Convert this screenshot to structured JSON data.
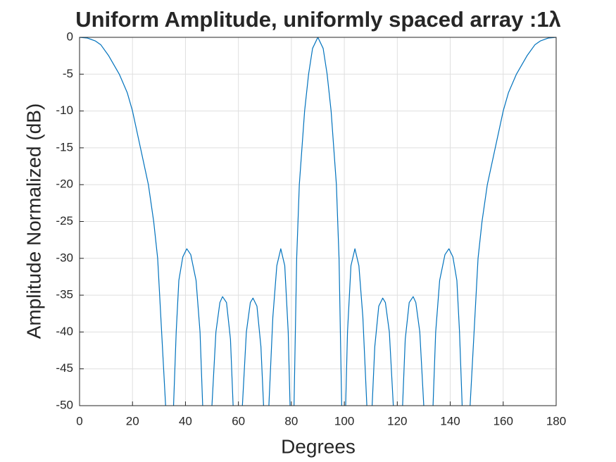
{
  "chart_data": {
    "type": "line",
    "title": "Uniform Amplitude, uniformly spaced array :1λ",
    "xlabel": "Degrees",
    "ylabel": "Amplitude Normalized (dB)",
    "color": "#0072bd",
    "grid": true,
    "xlim": [
      0,
      180
    ],
    "xticks": [
      0,
      20,
      40,
      60,
      80,
      100,
      120,
      140,
      160,
      180
    ],
    "ylim": [
      -50,
      0
    ],
    "yticks": [
      -50,
      -45,
      -40,
      -35,
      -30,
      -25,
      -20,
      -15,
      -10,
      -5,
      0
    ],
    "x": [
      0,
      3,
      6,
      8,
      11,
      15,
      18,
      20,
      23,
      26,
      28,
      29.5,
      31,
      32.5,
      33.6,
      35.5,
      36.5,
      37.5,
      39,
      40.5,
      42,
      44,
      45.5,
      46.5,
      48.2,
      50,
      51.5,
      53,
      54,
      55.5,
      57,
      58,
      60,
      61.5,
      63,
      64.5,
      65.5,
      67,
      68.5,
      69.5,
      70.5,
      71.5,
      73,
      74.5,
      76,
      77.5,
      78.8,
      79.5,
      80.4,
      81,
      82,
      83,
      85,
      86.5,
      88,
      90,
      92,
      93.5,
      95,
      97,
      98,
      99,
      99.6,
      100.5,
      101.2,
      102.5,
      104,
      105.5,
      107,
      108.5,
      109.5,
      110.5,
      111.5,
      113,
      114.5,
      115.5,
      117,
      118.5,
      120,
      122,
      123,
      124.5,
      126,
      127,
      128.5,
      130,
      131.8,
      133.5,
      134.5,
      136,
      138,
      139.5,
      141,
      142.5,
      143.5,
      144.5,
      146.4,
      147.5,
      149,
      150.5,
      152,
      154,
      157,
      160,
      162,
      165,
      169,
      172,
      174,
      177,
      180
    ],
    "values": [
      0,
      -0.1,
      -0.5,
      -1,
      -2.5,
      -5,
      -7.5,
      -10,
      -15,
      -20,
      -25,
      -30,
      -40,
      -50,
      -60,
      -50,
      -40,
      -33,
      -29.8,
      -28.7,
      -29.5,
      -33,
      -40,
      -50,
      -60,
      -50,
      -40,
      -36,
      -35.2,
      -36,
      -41,
      -50,
      -60,
      -50,
      -40,
      -36,
      -35.4,
      -36.5,
      -42,
      -50,
      -60,
      -50,
      -38,
      -31,
      -28.7,
      -31,
      -40,
      -50,
      -60,
      -50,
      -30,
      -20,
      -10,
      -5,
      -1.5,
      0,
      -1.5,
      -5,
      -10,
      -20,
      -30,
      -50,
      -60,
      -50,
      -40,
      -31,
      -28.7,
      -31,
      -38,
      -50,
      -60,
      -50,
      -42,
      -36.5,
      -35.4,
      -36,
      -40,
      -50,
      -60,
      -50,
      -41,
      -36,
      -35.2,
      -36,
      -40,
      -50,
      -60,
      -50,
      -40,
      -33,
      -29.5,
      -28.7,
      -29.8,
      -33,
      -40,
      -50,
      -60,
      -50,
      -40,
      -30,
      -25,
      -20,
      -15,
      -10,
      -7.5,
      -5,
      -2.5,
      -1,
      -0.5,
      -0.1,
      0
    ]
  }
}
